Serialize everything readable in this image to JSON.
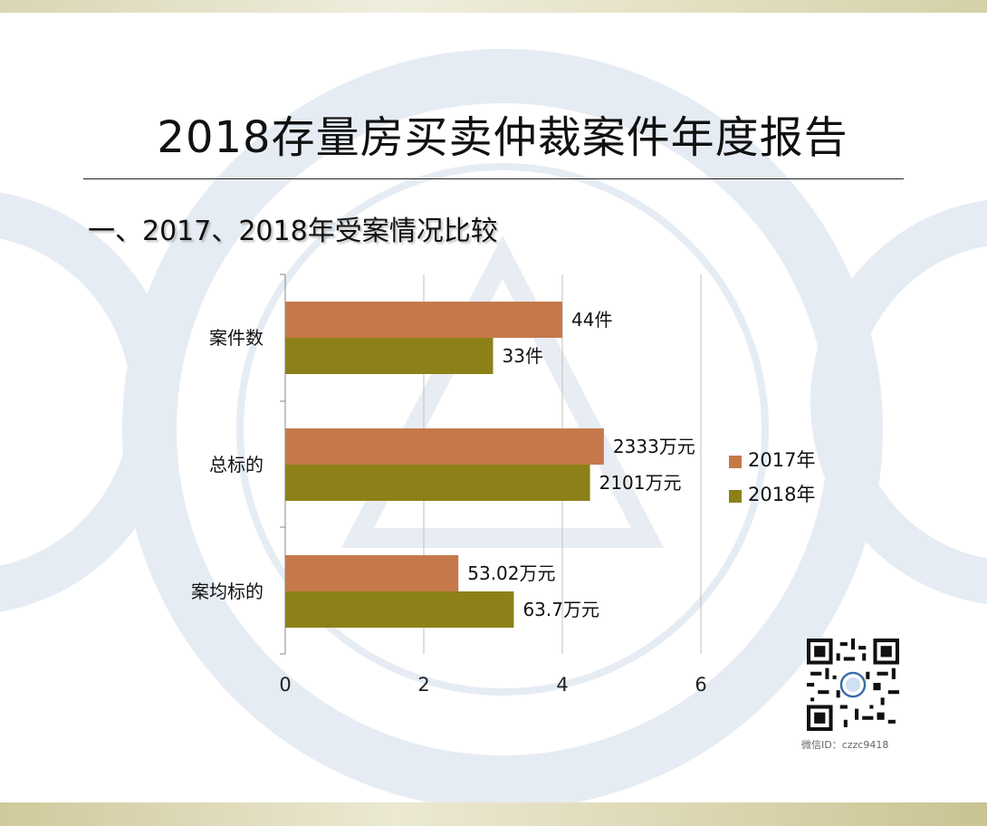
{
  "slide": {
    "title": "2018存量房买卖仲裁案件年度报告",
    "subtitle": "一、2017、2018年受案情况比较",
    "qr_caption": "微信ID：czzc9418"
  },
  "colors": {
    "series_2017": "#c5794a",
    "series_2018": "#8c8118",
    "axis": "#888888"
  },
  "chart_data": {
    "type": "bar",
    "orientation": "horizontal",
    "categories": [
      "案件数",
      "总标的",
      "案均标的"
    ],
    "series": [
      {
        "name": "2017年",
        "color": "#c5794a",
        "values": [
          4.0,
          4.6,
          2.5
        ],
        "data_labels": [
          "44件",
          "2333万元",
          "53.02万元"
        ]
      },
      {
        "name": "2018年",
        "color": "#8c8118",
        "values": [
          3.0,
          4.4,
          3.3
        ],
        "data_labels": [
          "33件",
          "2101万元",
          "63.7万元"
        ]
      }
    ],
    "xlim": [
      0,
      6
    ],
    "x_ticks": [
      "0",
      "2",
      "4",
      "6"
    ],
    "grid": true,
    "legend_position": "right"
  }
}
